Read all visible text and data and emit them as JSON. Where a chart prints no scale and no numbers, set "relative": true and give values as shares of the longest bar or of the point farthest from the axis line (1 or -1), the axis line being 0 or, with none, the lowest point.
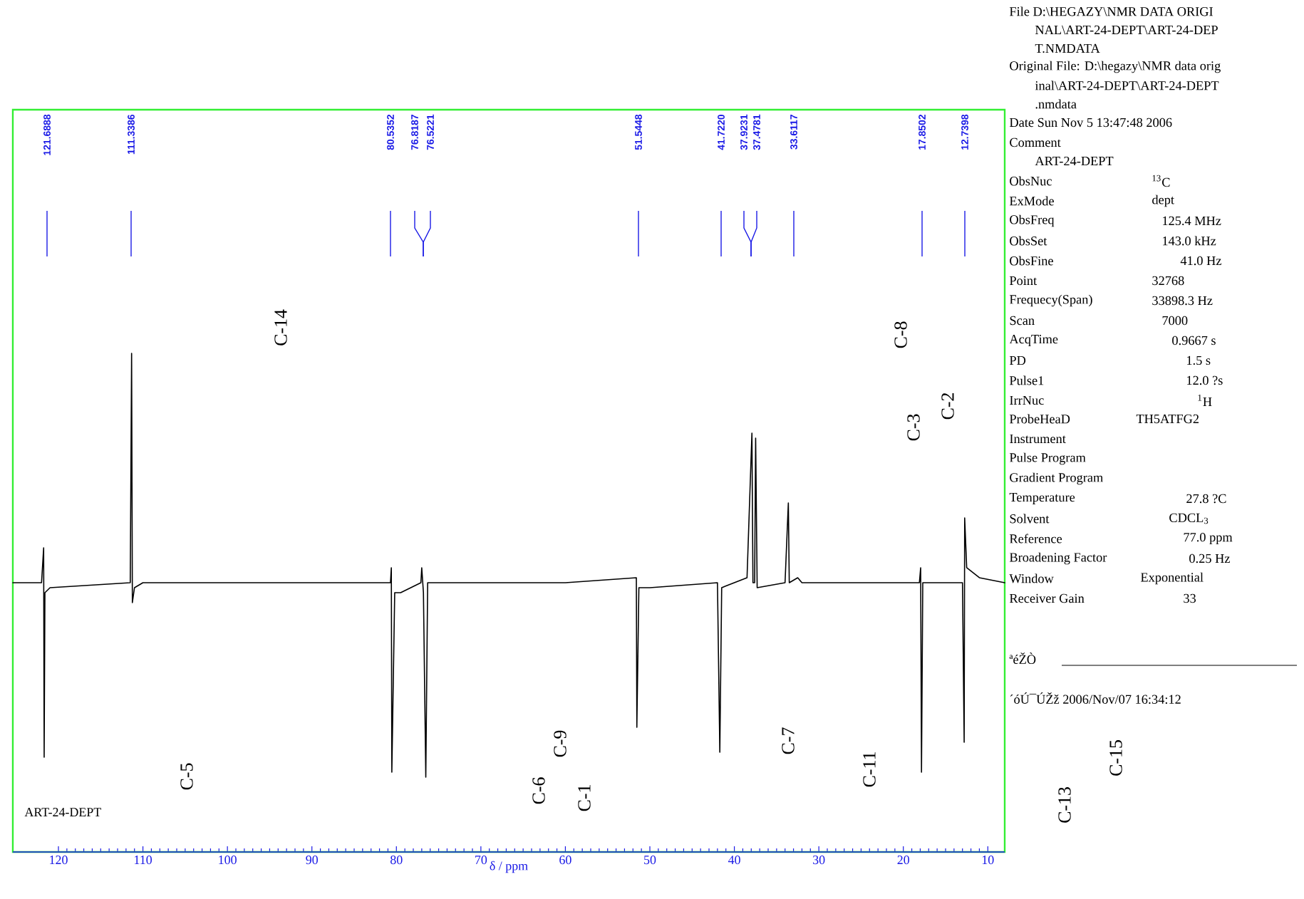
{
  "chart_data": {
    "type": "line",
    "relative": true,
    "xlabel": "δ / ppm",
    "xlim": [
      125.4,
      8
    ],
    "xticks": [
      120,
      110,
      100,
      90,
      80,
      70,
      60,
      50,
      40,
      30,
      20,
      10
    ],
    "series": [
      {
        "color": "#000000",
        "x": [
          125.4,
          122.0,
          121.75,
          121.69,
          121.6,
          121.0,
          111.5,
          111.34,
          111.25,
          111.0,
          110.0,
          80.7,
          80.6,
          80.54,
          80.2,
          79.5,
          77.1,
          77.0,
          76.8,
          76.52,
          76.3,
          60.0,
          51.6,
          51.54,
          51.3,
          50.0,
          42.0,
          41.72,
          41.5,
          38.5,
          37.92,
          37.8,
          37.6,
          37.48,
          37.3,
          34.0,
          33.61,
          33.5,
          32.5,
          32.0,
          18.1,
          17.95,
          17.85,
          17.7,
          13.0,
          12.8,
          12.74,
          12.5,
          11.0,
          8.0
        ],
        "values": [
          0.54,
          0.54,
          0.61,
          0.19,
          0.52,
          0.53,
          0.54,
          1.0,
          0.5,
          0.53,
          0.54,
          0.54,
          0.57,
          0.16,
          0.52,
          0.52,
          0.54,
          0.57,
          0.52,
          0.15,
          0.54,
          0.54,
          0.55,
          0.25,
          0.53,
          0.53,
          0.54,
          0.2,
          0.53,
          0.55,
          0.84,
          0.54,
          0.54,
          0.83,
          0.53,
          0.54,
          0.7,
          0.54,
          0.55,
          0.54,
          0.54,
          0.57,
          0.16,
          0.54,
          0.54,
          0.22,
          0.67,
          0.57,
          0.55,
          0.54
        ]
      }
    ],
    "annotations": [
      "121.6888",
      "111.3386",
      "80.5352",
      "76.8187",
      "76.5221",
      "51.5448",
      "41.7220",
      "37.9231",
      "37.4781",
      "33.6117",
      "17.8502",
      "12.7398",
      "ART-24-DEPT",
      "C-14",
      "C-8",
      "C-3",
      "C-2",
      "C-5",
      "C-9",
      "C-6",
      "C-1",
      "C-7",
      "C-11",
      "C-13",
      "C-15",
      "File  D:\\HEGAZY\\NMR DATA ORIGI",
      "NAL\\ART-24-DEPT\\ART-24-DEP",
      "T.NMDATA",
      "Original File:  D:\\hegazy\\NMR data orig",
      "inal\\ART-24-DEPT\\ART-24-DEPT",
      ".nmdata",
      "Date   Sun Nov  5 13:47:48 2006",
      "Comment",
      "ART-24-DEPT",
      "ObsNuc",
      "$^{13}$C",
      "ExMode",
      "dept",
      "ObsFreq",
      "125.4 MHz",
      "ObsSet",
      "143.0 kHz",
      "ObsFine",
      "41.0 Hz",
      "Point",
      "32768",
      "Frequecy(Span)",
      "33898.3 Hz",
      "Scan",
      "7000",
      "AcqTime",
      "0.9667 s",
      "PD",
      "1.5 s",
      "Pulse1",
      "12.0 ?s",
      "IrrNuc",
      "$^{1}$H",
      "ProbeHeaD",
      "TH5ATFG2",
      "Instrument",
      "Pulse Program",
      "Gradient Program",
      "Temperature",
      "27.8 ?C",
      "Solvent",
      "CDCL$_{3}$",
      "Reference",
      "77.0 ppm",
      "Broadening Factor",
      "0.25 Hz",
      "Window",
      "Exponential",
      "Receiver Gain",
      "33",
      "ªéŽÒ",
      "´óÚ¯ÚŽž   2006/Nov/07 16:34:12"
    ]
  }
}
